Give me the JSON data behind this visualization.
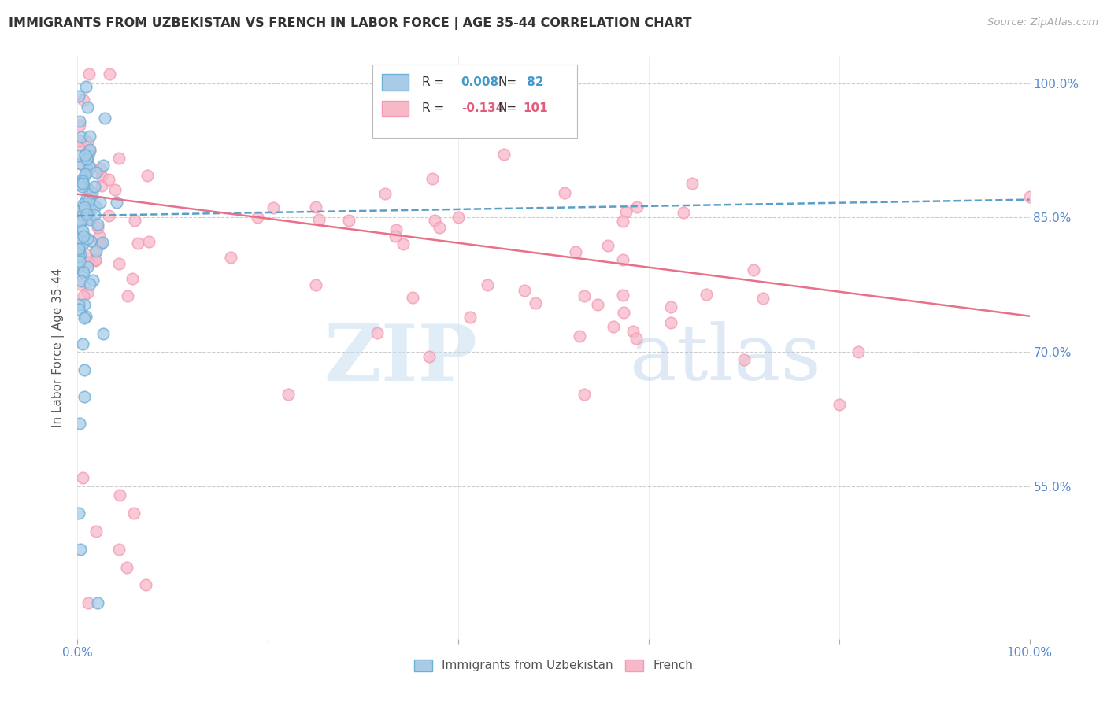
{
  "title": "IMMIGRANTS FROM UZBEKISTAN VS FRENCH IN LABOR FORCE | AGE 35-44 CORRELATION CHART",
  "source": "Source: ZipAtlas.com",
  "ylabel": "In Labor Force | Age 35-44",
  "watermark_zip": "ZIP",
  "watermark_atlas": "atlas",
  "legend_blue_label": "Immigrants from Uzbekistan",
  "legend_pink_label": "French",
  "r_blue": "0.008",
  "n_blue": " 82",
  "r_pink": "-0.134",
  "n_pink": "101",
  "xmin": 0.0,
  "xmax": 1.0,
  "ymin": 0.38,
  "ymax": 1.03,
  "yticks": [
    0.55,
    0.7,
    0.85,
    1.0
  ],
  "ytick_labels": [
    "55.0%",
    "70.0%",
    "85.0%",
    "100.0%"
  ],
  "xtick_positions": [
    0.0,
    0.2,
    0.4,
    0.6,
    0.8,
    1.0
  ],
  "xtick_labels": [
    "0.0%",
    "",
    "",
    "",
    "",
    "100.0%"
  ],
  "blue_face_color": "#a8cce8",
  "blue_edge_color": "#6baed6",
  "pink_face_color": "#f7b8c8",
  "pink_edge_color": "#f49ab5",
  "blue_line_color": "#5b9fc9",
  "pink_line_color": "#e8708a",
  "axis_label_color": "#5588cc",
  "grid_color": "#cccccc",
  "background_color": "#ffffff",
  "title_color": "#333333",
  "legend_r_color_blue": "#4499cc",
  "legend_n_color_blue": "#4499cc",
  "legend_r_color_pink": "#e05c7a",
  "legend_n_color_pink": "#e05c7a"
}
